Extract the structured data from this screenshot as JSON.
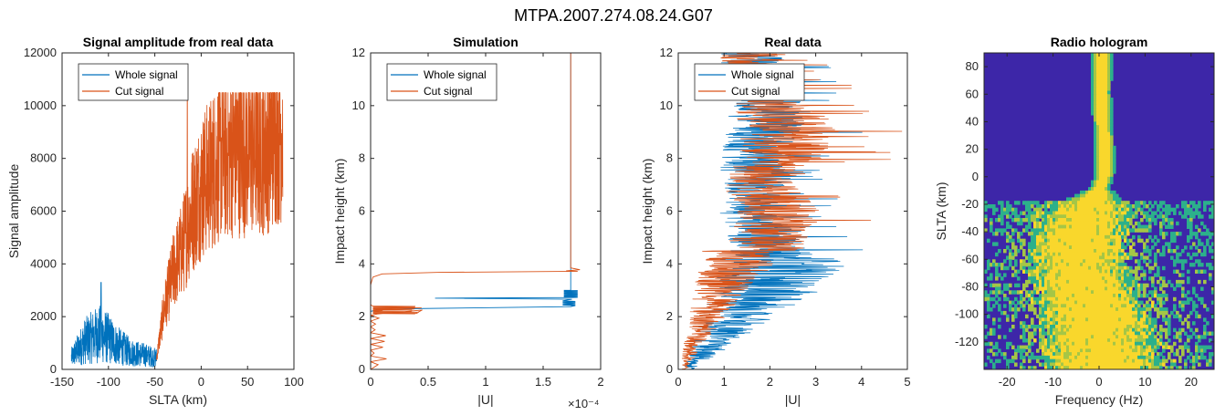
{
  "figure": {
    "suptitle": "MTPA.2007.274.08.24.G07"
  },
  "colors": {
    "whole": "#0072BD",
    "cut": "#D95319",
    "axis": "#262626",
    "holo_bg": "#3D26A8",
    "holo_mid": "#2CB08B",
    "holo_hi": "#A5C646",
    "holo_top": "#F9D72C"
  },
  "chart_data": [
    {
      "type": "line",
      "title": "Signal amplitude from real data",
      "xlabel": "SLTA (km)",
      "ylabel": "Signal amplitude",
      "xlim": [
        -150,
        100
      ],
      "ylim": [
        0,
        12000
      ],
      "xticks": [
        "-150",
        "-100",
        "-50",
        "0",
        "50",
        "100"
      ],
      "yticks": [
        "0",
        "2000",
        "4000",
        "6000",
        "8000",
        "10000",
        "12000"
      ],
      "legend": {
        "position": "top-left",
        "entries": [
          "Whole signal",
          "Cut signal"
        ]
      },
      "series": [
        {
          "name": "Whole signal",
          "x_range": [
            -140,
            -48
          ],
          "values_envelope": [
            [
              -140,
              500
            ],
            [
              -125,
              1200
            ],
            [
              -110,
              1500
            ],
            [
              -100,
              1300
            ],
            [
              -90,
              1000
            ],
            [
              -75,
              700
            ],
            [
              -60,
              600
            ],
            [
              -50,
              500
            ]
          ],
          "peak": [
            -108,
            3300
          ]
        },
        {
          "name": "Cut signal",
          "x_range": [
            -48,
            88
          ],
          "values_envelope": [
            [
              -48,
              500
            ],
            [
              -40,
              2500
            ],
            [
              -30,
              4000
            ],
            [
              -20,
              5000
            ],
            [
              -10,
              6500
            ],
            [
              0,
              7500
            ],
            [
              10,
              8000
            ],
            [
              20,
              8700
            ],
            [
              30,
              8900
            ],
            [
              40,
              9000
            ],
            [
              50,
              9000
            ],
            [
              60,
              9000
            ],
            [
              70,
              9200
            ],
            [
              80,
              9700
            ],
            [
              88,
              10000
            ]
          ],
          "peak": [
            -15,
            10300
          ]
        }
      ]
    },
    {
      "type": "line",
      "title": "Simulation",
      "xlabel": "|U|",
      "ylabel": "Impact height (km)",
      "xlim": [
        0,
        2
      ],
      "ylim": [
        0,
        12
      ],
      "x_exponent": "×10⁻⁴",
      "xticks": [
        "0",
        "0.5",
        "1",
        "1.5",
        "2"
      ],
      "yticks": [
        "0",
        "2",
        "4",
        "6",
        "8",
        "10",
        "12"
      ],
      "legend": {
        "position": "top-left",
        "entries": [
          "Whole signal",
          "Cut signal"
        ]
      },
      "series": [
        {
          "name": "Whole signal",
          "points": [
            [
              1.74,
              12
            ],
            [
              1.74,
              3.0
            ],
            [
              1.8,
              2.7
            ],
            [
              0.55,
              2.7
            ],
            [
              1.74,
              2.55
            ],
            [
              0.1,
              2.3
            ],
            [
              0.0,
              2.2
            ]
          ]
        },
        {
          "name": "Cut signal",
          "points": [
            [
              1.74,
              12
            ],
            [
              1.74,
              3.8
            ],
            [
              1.82,
              3.75
            ],
            [
              0.05,
              3.6
            ],
            [
              0.0,
              3.3
            ],
            [
              0.0,
              2.4
            ],
            [
              0.45,
              2.3
            ],
            [
              0.05,
              2.1
            ],
            [
              0.02,
              1.0
            ],
            [
              0.0,
              0
            ]
          ]
        }
      ]
    },
    {
      "type": "line",
      "title": "Real data",
      "xlabel": "|U|",
      "ylabel": "Impact height (km)",
      "xlim": [
        0,
        5
      ],
      "ylim": [
        0,
        12
      ],
      "xticks": [
        "0",
        "1",
        "2",
        "3",
        "4",
        "5"
      ],
      "yticks": [
        "0",
        "2",
        "4",
        "6",
        "8",
        "10",
        "12"
      ],
      "legend": {
        "position": "top-left",
        "entries": [
          "Whole signal",
          "Cut signal"
        ]
      },
      "series": [
        {
          "name": "Whole signal",
          "envelope": [
            [
              0.3,
              0
            ],
            [
              1.2,
              1
            ],
            [
              2.0,
              2
            ],
            [
              3.0,
              3
            ],
            [
              3.5,
              4
            ],
            [
              3.0,
              5
            ],
            [
              2.5,
              6
            ],
            [
              2.8,
              7
            ],
            [
              2.5,
              8
            ],
            [
              3.0,
              9
            ],
            [
              3.2,
              10
            ],
            [
              2.8,
              11
            ],
            [
              2.5,
              12
            ]
          ]
        },
        {
          "name": "Cut signal",
          "envelope": [
            [
              0.3,
              0
            ],
            [
              0.8,
              1
            ],
            [
              1.5,
              2
            ],
            [
              2.2,
              3
            ],
            [
              3.0,
              4
            ],
            [
              3.2,
              5
            ],
            [
              3.5,
              6
            ],
            [
              2.8,
              7
            ],
            [
              3.5,
              8
            ],
            [
              4.0,
              9
            ],
            [
              3.3,
              10
            ],
            [
              2.8,
              11
            ],
            [
              2.4,
              12
            ]
          ]
        }
      ]
    },
    {
      "type": "heatmap",
      "title": "Radio hologram",
      "xlabel": "Frequency (Hz)",
      "ylabel": "SLTA (km)",
      "xlim": [
        -25,
        25
      ],
      "ylim": [
        -140,
        90
      ],
      "xticks": [
        "-20",
        "-10",
        "0",
        "10",
        "20"
      ],
      "yticks": [
        "-120",
        "-100",
        "-80",
        "-60",
        "-40",
        "-20",
        "0",
        "20",
        "40",
        "60",
        "80"
      ],
      "ridge": [
        [
          90,
          0.6
        ],
        [
          60,
          0.4
        ],
        [
          30,
          1.0
        ],
        [
          10,
          1.2
        ],
        [
          0,
          1.0
        ],
        [
          -10,
          0.0
        ],
        [
          -20,
          -2.0
        ],
        [
          -40,
          -4.0
        ],
        [
          -60,
          -5.0
        ],
        [
          -80,
          -3.0
        ],
        [
          -100,
          -1.0
        ],
        [
          -120,
          0.0
        ],
        [
          -140,
          1.0
        ]
      ]
    }
  ]
}
